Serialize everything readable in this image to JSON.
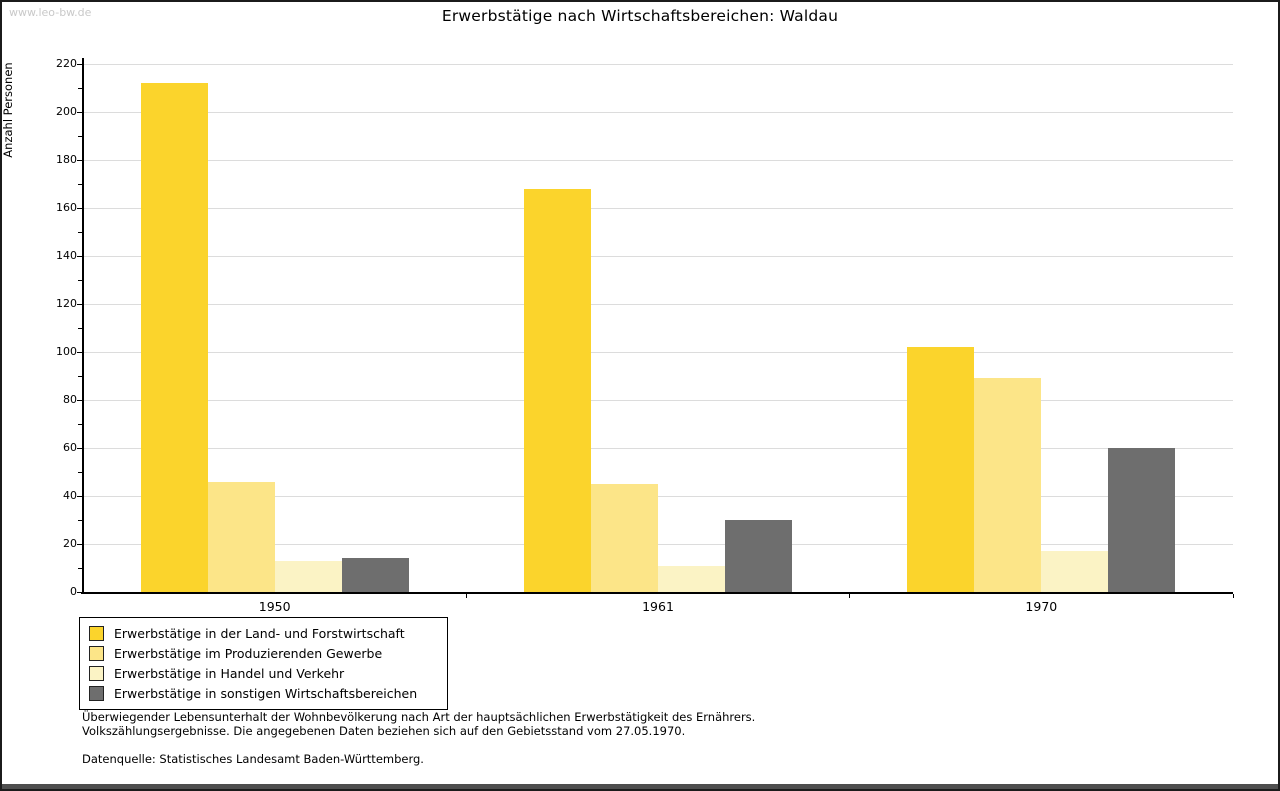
{
  "watermark": "www.leo-bw.de",
  "title": "Erwerbstätige nach Wirtschaftsbereichen: Waldau",
  "chart_data": {
    "type": "bar",
    "title": "Erwerbstätige nach Wirtschaftsbereichen: Waldau",
    "xlabel": "",
    "ylabel": "Anzahl Personen",
    "categories": [
      "1950",
      "1961",
      "1970"
    ],
    "series": [
      {
        "name": "Erwerbstätige in der Land- und Forstwirtschaft",
        "color": "#FBD42C",
        "values": [
          212,
          168,
          102
        ]
      },
      {
        "name": "Erwerbstätige im Produzierenden Gewerbe",
        "color": "#FCE588",
        "values": [
          46,
          45,
          89
        ]
      },
      {
        "name": "Erwerbstätige in Handel und Verkehr",
        "color": "#FBF3C5",
        "values": [
          13,
          11,
          17
        ]
      },
      {
        "name": "Erwerbstätige in sonstigen Wirtschaftsbereichen",
        "color": "#6E6E6E",
        "values": [
          14,
          30,
          60
        ]
      }
    ],
    "ylim": [
      0,
      220
    ],
    "ytick_step": 20,
    "minor_tick_step": 10,
    "grid": "horizontal-major",
    "gridline_color": "#dcdcdc",
    "axis_color": "#000000",
    "legend_position": "bottom-left"
  },
  "footnotes": {
    "line1": "Überwiegender Lebensunterhalt der Wohnbevölkerung nach Art der hauptsächlichen Erwerbstätigkeit des Ernährers.",
    "line2": "Volkszählungsergebnisse. Die angegebenen Daten beziehen sich auf den Gebietsstand vom 27.05.1970.",
    "source": "Datenquelle: Statistisches Landesamt Baden-Württemberg."
  }
}
